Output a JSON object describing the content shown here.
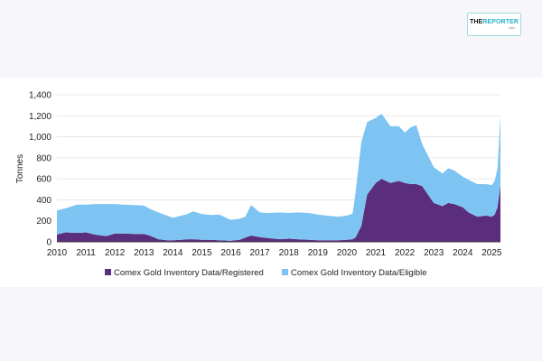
{
  "logo": {
    "part1": "THE",
    "part2": "REPORTER",
    "sub": "ASIA"
  },
  "chart_data": {
    "type": "area",
    "stacked": true,
    "title": "",
    "xlabel": "",
    "ylabel": "Tonnes",
    "ylim": [
      0,
      1400
    ],
    "yticks": [
      0,
      200,
      400,
      600,
      800,
      1000,
      1200,
      1400
    ],
    "ytick_labels": [
      "0",
      "200",
      "400",
      "600",
      "800",
      "1,000",
      "1,200",
      "1,400"
    ],
    "xlim": [
      2010,
      2025.3
    ],
    "xticks": [
      2010,
      2011,
      2012,
      2013,
      2014,
      2015,
      2016,
      2017,
      2018,
      2019,
      2020,
      2021,
      2022,
      2023,
      2024,
      2025
    ],
    "xtick_labels": [
      "2010",
      "2011",
      "2012",
      "2013",
      "2014",
      "2015",
      "2016",
      "2017",
      "2018",
      "2019",
      "2020",
      "2021",
      "2022",
      "2023",
      "2024",
      "2025"
    ],
    "legend_position": "bottom",
    "grid": "horizontal",
    "x": [
      2010.0,
      2010.3,
      2010.7,
      2011.0,
      2011.3,
      2011.7,
      2012.0,
      2012.3,
      2012.7,
      2013.0,
      2013.2,
      2013.5,
      2013.8,
      2014.0,
      2014.3,
      2014.5,
      2014.7,
      2015.0,
      2015.3,
      2015.6,
      2016.0,
      2016.3,
      2016.5,
      2016.7,
      2017.0,
      2017.3,
      2017.7,
      2018.0,
      2018.3,
      2018.7,
      2019.0,
      2019.3,
      2019.7,
      2020.0,
      2020.2,
      2020.3,
      2020.5,
      2020.7,
      2021.0,
      2021.2,
      2021.5,
      2021.8,
      2022.0,
      2022.2,
      2022.4,
      2022.6,
      2022.8,
      2023.0,
      2023.3,
      2023.5,
      2023.7,
      2024.0,
      2024.2,
      2024.5,
      2024.8,
      2025.0,
      2025.1,
      2025.2,
      2025.3
    ],
    "series": [
      {
        "name": "Comex Gold Inventory Data/Registered",
        "color": "#5b2d7d",
        "values": [
          70,
          90,
          85,
          90,
          70,
          55,
          80,
          80,
          75,
          75,
          60,
          25,
          15,
          15,
          20,
          25,
          25,
          20,
          20,
          15,
          10,
          20,
          40,
          60,
          45,
          35,
          25,
          30,
          25,
          20,
          15,
          15,
          15,
          20,
          25,
          40,
          150,
          450,
          560,
          600,
          560,
          580,
          560,
          550,
          550,
          530,
          450,
          370,
          340,
          370,
          360,
          330,
          280,
          240,
          250,
          240,
          260,
          330,
          540
        ]
      },
      {
        "name": "Comex Gold Inventory Data/Eligible",
        "color": "#7ec4f2",
        "values": [
          230,
          230,
          270,
          265,
          290,
          305,
          280,
          275,
          275,
          270,
          255,
          255,
          235,
          215,
          230,
          240,
          265,
          245,
          235,
          245,
          200,
          200,
          200,
          290,
          235,
          240,
          255,
          245,
          255,
          255,
          245,
          235,
          225,
          230,
          245,
          420,
          800,
          690,
          620,
          620,
          540,
          520,
          480,
          540,
          560,
          400,
          370,
          340,
          310,
          330,
          320,
          290,
          310,
          310,
          300,
          300,
          320,
          370,
          660
        ]
      }
    ]
  }
}
